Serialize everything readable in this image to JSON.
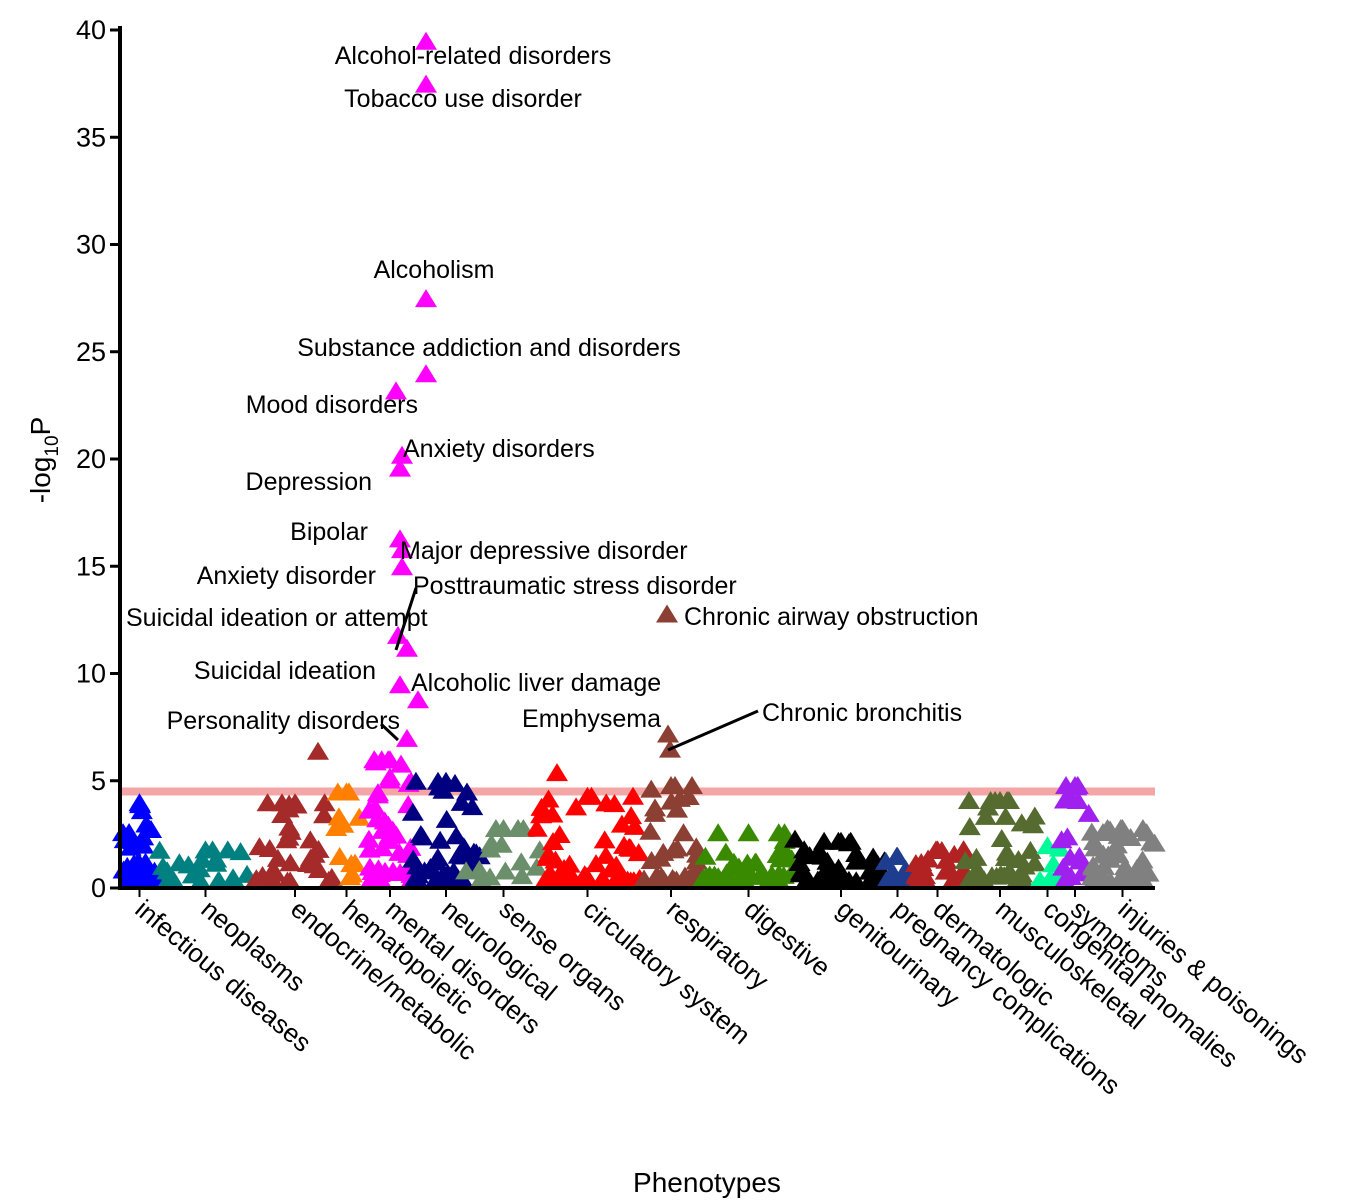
{
  "chart_data": {
    "type": "scatter",
    "title": "",
    "xlabel": "Phenotypes",
    "ylabel": "-log10P",
    "ylabel_parts": {
      "prefix": "-log",
      "subscript": "10",
      "suffix": "P"
    },
    "ylim": [
      0,
      40
    ],
    "yticks": [
      0,
      5,
      10,
      15,
      20,
      25,
      30,
      35,
      40
    ],
    "yticks_text": [
      "0",
      "5",
      "10",
      "15",
      "20",
      "25",
      "30",
      "35",
      "40"
    ],
    "grid": false,
    "marker": "triangle",
    "significance_threshold": 4.5,
    "threshold_color": "#f4a6a6",
    "categories": [
      {
        "name": "infectious diseases",
        "color": "#0000ff",
        "x_range": [
          3,
          36
        ],
        "n": 34,
        "max": 4.0
      },
      {
        "name": "neoplasms",
        "color": "#008080",
        "x_range": [
          38,
          133
        ],
        "n": 20,
        "max": 1.8
      },
      {
        "name": "endocrine/metabolic",
        "color": "#a52a2a",
        "x_range": [
          135,
          215
        ],
        "n": 32,
        "max": 4.0
      },
      {
        "name": "hematopoietic",
        "color": "#ff8000",
        "x_range": [
          213,
          240
        ],
        "n": 10,
        "max": 4.5
      },
      {
        "name": "mental disorders",
        "color": "#ff00ff",
        "x_range": [
          248,
          292
        ],
        "n": 40,
        "max": 6.0
      },
      {
        "name": "neurological",
        "color": "#000080",
        "x_range": [
          292,
          360
        ],
        "n": 40,
        "max": 5.0
      },
      {
        "name": "sense organs",
        "color": "#6b8e6b",
        "x_range": [
          345,
          422
        ],
        "n": 14,
        "max": 2.8
      },
      {
        "name": "circulatory system",
        "color": "#ff0000",
        "x_range": [
          415,
          520
        ],
        "n": 55,
        "max": 4.3
      },
      {
        "name": "respiratory",
        "color": "#8b4033",
        "x_range": [
          522,
          580
        ],
        "n": 38,
        "max": 4.8
      },
      {
        "name": "digestive",
        "color": "#3a8a00",
        "x_range": [
          582,
          675
        ],
        "n": 40,
        "max": 2.6
      },
      {
        "name": "genitourinary",
        "color": "#000000",
        "x_range": [
          677,
          765
        ],
        "n": 40,
        "max": 2.2
      },
      {
        "name": "pregnancy complications",
        "color": "#1f3d8f",
        "x_range": [
          765,
          790
        ],
        "n": 10,
        "max": 1.5
      },
      {
        "name": "dermatologic",
        "color": "#b22222",
        "x_range": [
          790,
          845
        ],
        "n": 25,
        "max": 1.8
      },
      {
        "name": "musculoskeletal",
        "color": "#556b2f",
        "x_range": [
          845,
          915
        ],
        "n": 35,
        "max": 4.1
      },
      {
        "name": "congenital anomalies",
        "color": "#00fa9a",
        "x_range": [
          915,
          940
        ],
        "n": 8,
        "max": 2.0
      },
      {
        "name": "symptoms",
        "color": "#a020f0",
        "x_range": [
          940,
          970
        ],
        "n": 15,
        "max": 4.8
      },
      {
        "name": "injuries & poisonings",
        "color": "#808080",
        "x_range": [
          970,
          1035
        ],
        "n": 40,
        "max": 2.8
      }
    ],
    "annotated_points": [
      {
        "label": "Alcohol-related disorders",
        "x": 306,
        "y": 39.5,
        "category": "mental disorders"
      },
      {
        "label": "Tobacco use disorder",
        "x": 306,
        "y": 37.5,
        "category": "mental disorders"
      },
      {
        "label": "Alcoholism",
        "x": 306,
        "y": 27.5,
        "category": "mental disorders"
      },
      {
        "label": "Substance addiction and disorders",
        "x": 306,
        "y": 24.0,
        "category": "mental disorders"
      },
      {
        "label": "Mood disorders",
        "x": 276,
        "y": 23.2,
        "category": "mental disorders"
      },
      {
        "label": "Anxiety disorders",
        "x": 282,
        "y": 20.2,
        "category": "mental disorders"
      },
      {
        "label": "Depression",
        "x": 280,
        "y": 19.6,
        "category": "mental disorders"
      },
      {
        "label": "Bipolar",
        "x": 280,
        "y": 16.3,
        "category": "mental disorders"
      },
      {
        "label": "Major depressive disorder",
        "x": 282,
        "y": 15.8,
        "category": "mental disorders"
      },
      {
        "label": "Anxiety disorder",
        "x": 282,
        "y": 15.0,
        "category": "mental disorders"
      },
      {
        "label": "Posttraumatic stress disorder",
        "x": 287,
        "y": 11.2,
        "category": "mental disorders"
      },
      {
        "label": "Suicidal ideation or attempt",
        "x": 278,
        "y": 11.8,
        "category": "mental disorders"
      },
      {
        "label": "Suicidal ideation",
        "x": 280,
        "y": 9.5,
        "category": "mental disorders"
      },
      {
        "label": "Alcoholic liver damage",
        "x": 298,
        "y": 8.8,
        "category": "mental disorders"
      },
      {
        "label": "Personality disorders",
        "x": 287,
        "y": 7.0,
        "category": "mental disorders"
      },
      {
        "label": "Chronic airway obstruction",
        "x": 547,
        "y": 12.8,
        "category": "respiratory"
      },
      {
        "label": "Emphysema",
        "x": 548,
        "y": 7.2,
        "category": "respiratory"
      },
      {
        "label": "Chronic bronchitis",
        "x": 550,
        "y": 6.5,
        "category": "respiratory"
      }
    ],
    "other_points": [
      {
        "x": 198,
        "y": 6.4,
        "category": "endocrine/metabolic"
      },
      {
        "x": 437,
        "y": 5.4,
        "category": "circulatory system"
      },
      {
        "x": 946,
        "y": 4.8,
        "category": "symptoms"
      },
      {
        "x": 958,
        "y": 4.1,
        "category": "symptoms"
      },
      {
        "x": 887,
        "y": 4.1,
        "category": "musculoskeletal"
      },
      {
        "x": 868,
        "y": 3.8,
        "category": "musculoskeletal"
      },
      {
        "x": 675,
        "y": 2.3,
        "category": "genitourinary"
      },
      {
        "x": 398,
        "y": 2.8,
        "category": "sense organs"
      },
      {
        "x": 555,
        "y": 4.8,
        "category": "respiratory"
      },
      {
        "x": 513,
        "y": 4.3,
        "category": "circulatory system"
      },
      {
        "x": 162,
        "y": 4.0,
        "category": "endocrine/metabolic"
      },
      {
        "x": 335,
        "y": 4.9,
        "category": "neurological"
      },
      {
        "x": 318,
        "y": 5.0,
        "category": "neurological"
      },
      {
        "x": 347,
        "y": 4.5,
        "category": "neurological"
      },
      {
        "x": 229,
        "y": 4.5,
        "category": "hematopoietic"
      },
      {
        "x": 281,
        "y": 5.8,
        "category": "mental disorders"
      },
      {
        "x": 270,
        "y": 5.2,
        "category": "mental disorders"
      }
    ]
  }
}
